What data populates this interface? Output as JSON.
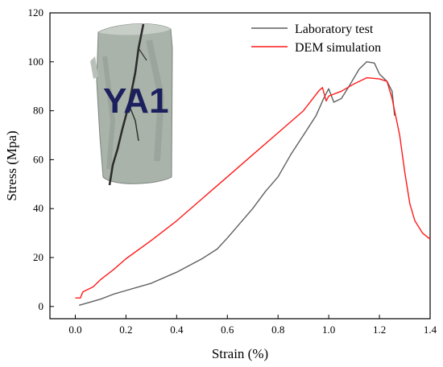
{
  "chart_data": {
    "type": "line",
    "title": "",
    "xlabel": "Strain (%)",
    "ylabel": "Stress (Mpa)",
    "xlim": [
      -0.1,
      1.4
    ],
    "ylim": [
      -5,
      120
    ],
    "xticks": [
      0.0,
      0.2,
      0.4,
      0.6,
      0.8,
      1.0,
      1.2,
      1.4
    ],
    "xtick_labels": [
      "0.0",
      "0.2",
      "0.4",
      "0.6",
      "0.8",
      "1.0",
      "1.2",
      "1.4"
    ],
    "yticks": [
      0,
      20,
      40,
      60,
      80,
      100,
      120
    ],
    "ytick_labels": [
      "0",
      "20",
      "40",
      "60",
      "80",
      "100",
      "120"
    ],
    "grid": false,
    "legend_position": "top-right",
    "series": [
      {
        "name": "Laboratory test",
        "color": "#5f5f5f",
        "points": [
          [
            0.015,
            0.5
          ],
          [
            0.05,
            1.5
          ],
          [
            0.1,
            3
          ],
          [
            0.15,
            5
          ],
          [
            0.2,
            6.5
          ],
          [
            0.3,
            9.5
          ],
          [
            0.4,
            14
          ],
          [
            0.5,
            19.5
          ],
          [
            0.56,
            23.5
          ],
          [
            0.6,
            28
          ],
          [
            0.65,
            34
          ],
          [
            0.7,
            40
          ],
          [
            0.75,
            47
          ],
          [
            0.8,
            53
          ],
          [
            0.85,
            62
          ],
          [
            0.9,
            70
          ],
          [
            0.95,
            78
          ],
          [
            0.98,
            85
          ],
          [
            1.0,
            89
          ],
          [
            1.02,
            83.5
          ],
          [
            1.05,
            85
          ],
          [
            1.08,
            90
          ],
          [
            1.12,
            97
          ],
          [
            1.15,
            100
          ],
          [
            1.18,
            99.5
          ],
          [
            1.2,
            95
          ],
          [
            1.23,
            92
          ],
          [
            1.25,
            88
          ],
          [
            1.26,
            78
          ]
        ]
      },
      {
        "name": "DEM simulation",
        "color": "#ff1a1a",
        "points": [
          [
            0.0,
            3.5
          ],
          [
            0.02,
            3.5
          ],
          [
            0.03,
            6
          ],
          [
            0.07,
            8
          ],
          [
            0.1,
            11
          ],
          [
            0.15,
            15
          ],
          [
            0.2,
            19.5
          ],
          [
            0.3,
            27
          ],
          [
            0.4,
            35
          ],
          [
            0.5,
            44
          ],
          [
            0.6,
            53
          ],
          [
            0.7,
            62
          ],
          [
            0.8,
            71
          ],
          [
            0.9,
            80
          ],
          [
            0.96,
            88
          ],
          [
            0.975,
            89.5
          ],
          [
            0.99,
            84
          ],
          [
            1.0,
            86
          ],
          [
            1.05,
            88
          ],
          [
            1.1,
            91
          ],
          [
            1.15,
            93.5
          ],
          [
            1.2,
            93
          ],
          [
            1.23,
            92
          ],
          [
            1.25,
            85
          ],
          [
            1.28,
            70
          ],
          [
            1.3,
            55
          ],
          [
            1.32,
            42
          ],
          [
            1.34,
            35
          ],
          [
            1.37,
            30
          ],
          [
            1.4,
            27.5
          ]
        ]
      }
    ]
  },
  "inset": {
    "specimen_label": "YA1"
  }
}
